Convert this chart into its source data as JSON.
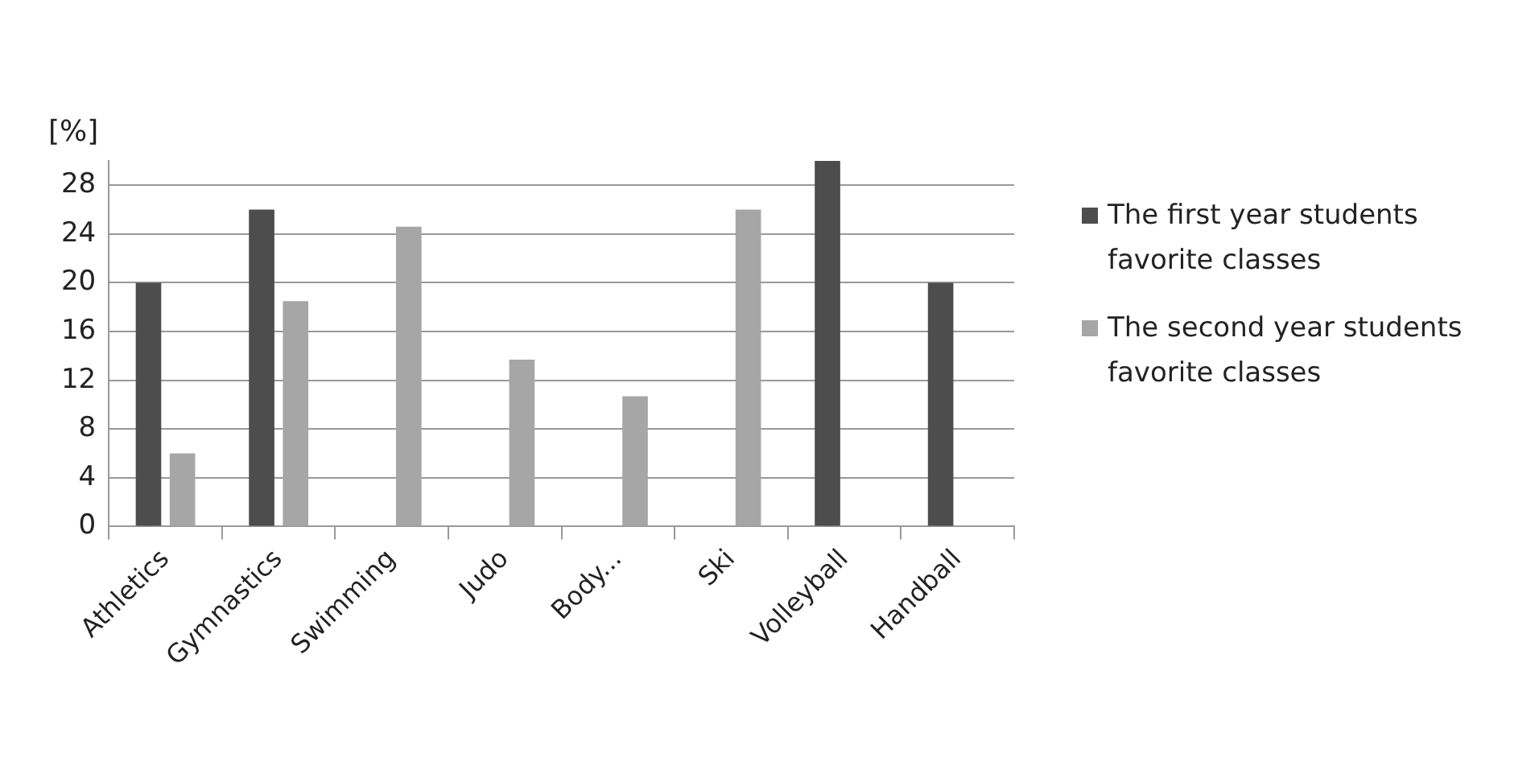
{
  "chart_data": {
    "type": "bar",
    "ylabel": "[%]",
    "categories": [
      "Athletics",
      "Gymnastics",
      "Swimming",
      "Judo",
      "Body...",
      "Ski",
      "Volleyball",
      "Handball"
    ],
    "series": [
      {
        "name": "The first year students favorite classes",
        "color": "#4d4d4d",
        "values": [
          20,
          26,
          null,
          null,
          null,
          null,
          30,
          20
        ]
      },
      {
        "name": "The second year students favorite classes",
        "color": "#a6a6a6",
        "values": [
          6,
          18.5,
          24.6,
          13.7,
          10.7,
          26,
          null,
          null
        ]
      }
    ],
    "ylim": [
      0,
      30
    ],
    "yticks": [
      0,
      4,
      8,
      12,
      16,
      20,
      24,
      28
    ],
    "grid": "y",
    "legend": "right"
  }
}
